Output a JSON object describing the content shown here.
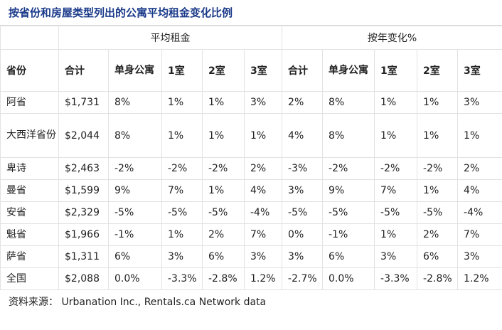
{
  "title": "按省份和房屋类型列出的公寓平均租金变化比例",
  "groups": {
    "avg_rent": "平均租金",
    "yoy_change": "按年变化%"
  },
  "columns": {
    "province": "省份",
    "total": "合计",
    "single": "单身公寓",
    "one_room": "1室",
    "two_room": "2室",
    "three_room": "3室"
  },
  "rows": [
    {
      "province": "阿省",
      "rent": [
        "$1,731",
        "8%",
        "1%",
        "1%",
        "3%"
      ],
      "change": [
        "2%",
        "8%",
        "1%",
        "1%",
        "3%"
      ]
    },
    {
      "province": "大西洋省份",
      "rent": [
        "$2,044",
        "8%",
        "1%",
        "1%",
        "1%"
      ],
      "change": [
        "4%",
        "8%",
        "1%",
        "1%",
        "1%"
      ]
    },
    {
      "province": "卑诗",
      "rent": [
        "$2,463",
        "-2%",
        "-2%",
        "-2%",
        "2%"
      ],
      "change": [
        "-3%",
        "-2%",
        "-2%",
        "-2%",
        "2%"
      ]
    },
    {
      "province": "曼省",
      "rent": [
        "$1,599",
        "9%",
        "7%",
        "1%",
        "4%"
      ],
      "change": [
        "3%",
        "9%",
        "7%",
        "1%",
        "4%"
      ]
    },
    {
      "province": "安省",
      "rent": [
        "$2,329",
        "-5%",
        "-5%",
        "-5%",
        "-4%"
      ],
      "change": [
        "-5%",
        "-5%",
        "-5%",
        "-5%",
        "-4%"
      ]
    },
    {
      "province": "魁省",
      "rent": [
        "$1,966",
        "-1%",
        "1%",
        "2%",
        "7%"
      ],
      "change": [
        "0%",
        "-1%",
        "1%",
        "2%",
        "7%"
      ]
    },
    {
      "province": "萨省",
      "rent": [
        "$1,311",
        "6%",
        "3%",
        "6%",
        "3%"
      ],
      "change": [
        "3%",
        "6%",
        "3%",
        "6%",
        "3%"
      ]
    },
    {
      "province": "全国",
      "rent": [
        "$2,088",
        "0.0%",
        "-3.3%",
        "-2.8%",
        "1.2%"
      ],
      "change": [
        "-2.7%",
        "0.0%",
        "-3.3%",
        "-2.8%",
        "1.2%"
      ]
    }
  ],
  "source": "资料来源： Urbanation Inc., Rentals.ca Network data",
  "colors": {
    "title": "#1a3a8a",
    "border": "#e2e2e2"
  }
}
